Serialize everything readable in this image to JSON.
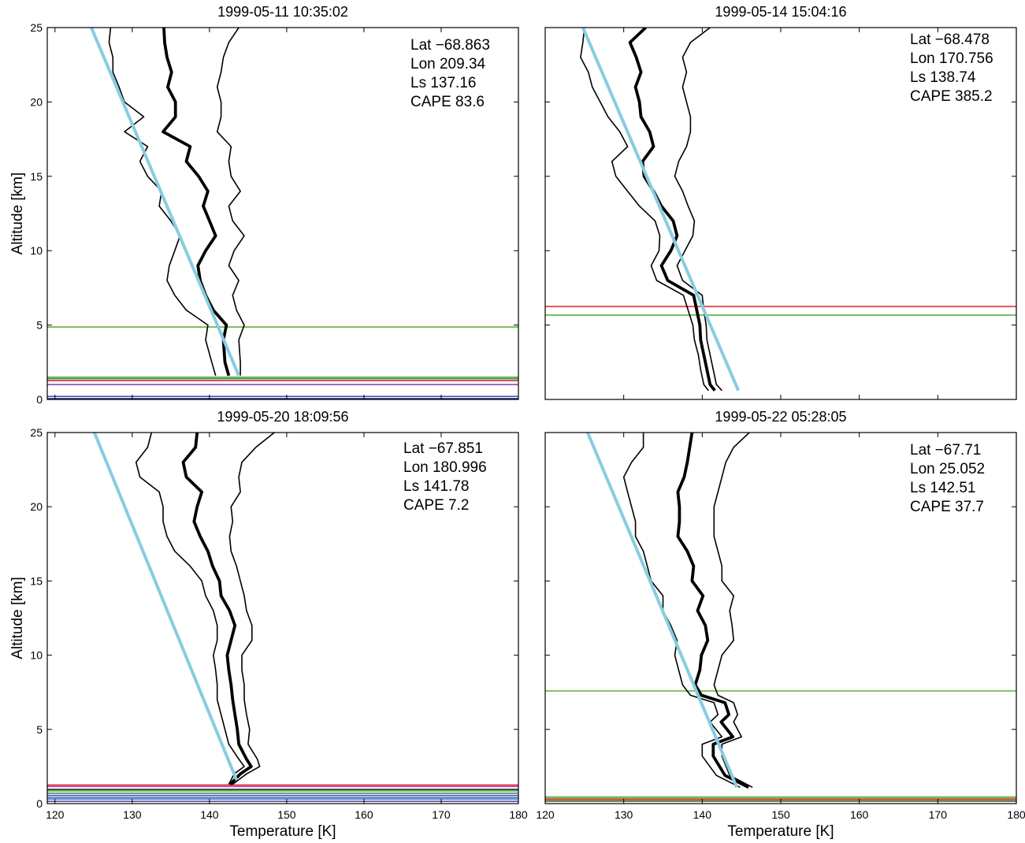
{
  "chart_data": [
    {
      "type": "line",
      "title": "1999-05-11 10:35:02",
      "ylabel": "Altitude [km]",
      "xlim": [
        119,
        180
      ],
      "ylim": [
        0,
        25
      ],
      "xticks": [
        120,
        130,
        140,
        150,
        160,
        170,
        180
      ],
      "xtick_labels": false,
      "yticks": [
        0,
        5,
        10,
        15,
        20,
        25
      ],
      "ytick_labels": true,
      "annotations": [
        "Lat −68.863",
        "Lon 209.34",
        "Ls 137.16",
        "CAPE 83.6"
      ],
      "y": [
        1.6,
        2.5,
        4,
        5,
        6,
        7,
        8,
        9,
        10,
        11,
        12,
        13,
        14,
        15,
        16,
        17,
        18,
        19,
        20,
        21,
        22,
        23,
        24,
        25
      ],
      "series": [
        {
          "color": "#000000",
          "values": [
            140.8,
            140.3,
            139.5,
            139.8,
            137.0,
            135.5,
            134.5,
            134.8,
            135.5,
            136.2,
            135.0,
            133.5,
            133.8,
            132.0,
            131.0,
            132.0,
            129.0,
            131.5,
            129.0,
            128.3,
            127.5,
            127.5,
            127.0,
            127.2
          ]
        },
        {
          "color": "#000000",
          "values": [
            142.5,
            142.0,
            141.8,
            142.2,
            140.5,
            139.5,
            138.8,
            138.5,
            139.5,
            140.8,
            140.0,
            139.2,
            139.8,
            138.6,
            137.0,
            137.5,
            134.0,
            135.6,
            135.6,
            134.6,
            135.1,
            134.5,
            134.2,
            134.1
          ]
        },
        {
          "color": "#000000",
          "values": [
            144.0,
            144.0,
            143.8,
            144.5,
            143.5,
            143.0,
            143.8,
            142.5,
            143.2,
            144.5,
            143.0,
            142.5,
            144.0,
            142.8,
            142.5,
            142.8,
            141.0,
            141.5,
            141.5,
            141.0,
            141.5,
            141.8,
            142.5,
            143.8
          ]
        }
      ],
      "fit": {
        "color": "#87cde0",
        "x": [
          143.8,
          124.7
        ],
        "y": [
          1.6,
          25
        ]
      },
      "hlines": [
        {
          "value": 4.87,
          "color": "#5ab43c"
        },
        {
          "value": 1.5,
          "color": "#5ab43c"
        },
        {
          "value": 1.4,
          "color": "#2e8b57"
        },
        {
          "value": 1.27,
          "color": "#e0202a"
        },
        {
          "value": 1.0,
          "color": "#7b3fa0"
        },
        {
          "value": 0.2,
          "color": "#3b5bbf"
        },
        {
          "value": 0.05,
          "color": "#1b1f6b"
        }
      ]
    },
    {
      "type": "line",
      "title": "1999-05-14 15:04:16",
      "xlim": [
        120,
        180
      ],
      "ylim": [
        0,
        25
      ],
      "xticks": [
        130,
        140,
        150,
        160,
        170,
        180
      ],
      "xtick_labels": false,
      "yticks": [
        0,
        5,
        10,
        15,
        20,
        25
      ],
      "ytick_labels": false,
      "annotations": [
        "Lat −68.478",
        "Lon 170.756",
        "Ls 138.74",
        "CAPE 385.2"
      ],
      "y": [
        0.6,
        1,
        2,
        3,
        4,
        5,
        6,
        7,
        8,
        9,
        10,
        11,
        12,
        13,
        14,
        15,
        16,
        17,
        18,
        19,
        20,
        21,
        22,
        23,
        24,
        25
      ],
      "series": [
        {
          "color": "#000000",
          "values": [
            140.8,
            140.2,
            139.8,
            139.5,
            139.0,
            138.8,
            138.2,
            137.6,
            134.2,
            133.5,
            134.5,
            134.6,
            134.0,
            132.0,
            130.5,
            129.0,
            128.5,
            130.5,
            129.5,
            128.0,
            127.0,
            126.0,
            125.5,
            124.5,
            124.8,
            125.0
          ]
        },
        {
          "color": "#000000",
          "values": [
            141.6,
            141.0,
            140.6,
            140.2,
            139.8,
            139.7,
            139.3,
            138.9,
            135.6,
            134.8,
            136.0,
            136.8,
            136.3,
            134.8,
            133.8,
            132.6,
            132.4,
            133.8,
            133.3,
            132.2,
            132.0,
            131.5,
            132.2,
            131.6,
            130.8,
            132.8
          ]
        },
        {
          "color": "#000000",
          "values": [
            142.5,
            141.8,
            141.4,
            141.0,
            140.6,
            140.5,
            140.2,
            140.0,
            137.5,
            136.8,
            137.8,
            138.8,
            139.0,
            138.2,
            137.5,
            136.5,
            137.0,
            138.0,
            138.5,
            138.5,
            138.0,
            137.5,
            138.0,
            137.5,
            138.5,
            141.0
          ]
        }
      ],
      "fit": {
        "color": "#87cde0",
        "x": [
          144.6,
          124.8
        ],
        "y": [
          0.6,
          25
        ]
      },
      "hlines": [
        {
          "value": 6.25,
          "color": "#e0202a"
        },
        {
          "value": 5.67,
          "color": "#5ab43c"
        }
      ]
    },
    {
      "type": "line",
      "title": "1999-05-20 18:09:56",
      "ylabel": "Altitude [km]",
      "xlabel": "Temperature [K]",
      "xlim": [
        119,
        180
      ],
      "ylim": [
        0,
        25
      ],
      "xticks": [
        120,
        130,
        140,
        150,
        160,
        170,
        180
      ],
      "xtick_labels": true,
      "yticks": [
        0,
        5,
        10,
        15,
        20,
        25
      ],
      "ytick_labels": true,
      "annotations": [
        "Lat −67.851",
        "Lon 180.996",
        "Ls 141.78",
        "CAPE 7.2"
      ],
      "y": [
        1.3,
        2,
        2.5,
        3,
        4,
        5,
        6,
        7,
        8,
        9,
        10,
        11,
        12,
        13,
        14,
        15,
        16,
        17,
        18,
        19,
        20,
        21,
        22,
        23,
        24,
        25
      ],
      "series": [
        {
          "color": "#000000",
          "values": [
            142.5,
            143.2,
            144.5,
            143.8,
            142.5,
            142.0,
            141.5,
            141.0,
            141.0,
            140.8,
            140.5,
            141.0,
            141.0,
            140.5,
            139.5,
            139.0,
            137.5,
            135.5,
            134.5,
            134.0,
            134.0,
            133.5,
            131.0,
            130.5,
            132.0,
            132.5
          ]
        },
        {
          "color": "#000000",
          "values": [
            142.7,
            144.0,
            145.4,
            144.8,
            143.8,
            143.6,
            143.3,
            143.0,
            142.8,
            142.5,
            142.3,
            142.8,
            143.3,
            142.6,
            141.5,
            141.3,
            140.4,
            139.8,
            138.8,
            138.0,
            138.4,
            139.0,
            137.0,
            136.6,
            138.2,
            138.4
          ]
        },
        {
          "color": "#000000",
          "values": [
            143.0,
            144.8,
            146.5,
            146.2,
            145.0,
            145.2,
            144.8,
            144.5,
            144.5,
            144.2,
            144.2,
            145.5,
            145.5,
            144.8,
            144.5,
            144.0,
            143.5,
            142.8,
            142.6,
            143.0,
            142.8,
            144.0,
            143.8,
            144.2,
            146.0,
            148.4
          ]
        }
      ],
      "fit": {
        "color": "#87cde0",
        "x": [
          143.5,
          125.1
        ],
        "y": [
          1.6,
          25
        ]
      },
      "hlines": [
        {
          "value": 1.25,
          "color": "#e0202a"
        },
        {
          "value": 1.15,
          "color": "#c040c0"
        },
        {
          "value": 0.95,
          "color": "#222222"
        },
        {
          "value": 0.85,
          "color": "#5ab43c"
        },
        {
          "value": 0.7,
          "color": "#3a8f5a"
        },
        {
          "value": 0.55,
          "color": "#3b5bbf"
        },
        {
          "value": 0.4,
          "color": "#6a5acd"
        },
        {
          "value": 0.3,
          "color": "#4a8fbf"
        },
        {
          "value": 0.15,
          "color": "#5a4fa0"
        }
      ]
    },
    {
      "type": "line",
      "title": "1999-05-22 05:28:05",
      "xlabel": "Temperature [K]",
      "xlim": [
        120,
        180
      ],
      "ylim": [
        0,
        25
      ],
      "xticks": [
        120,
        130,
        140,
        150,
        160,
        170,
        180
      ],
      "xtick_labels": true,
      "yticks": [
        0,
        5,
        10,
        15,
        20,
        25
      ],
      "ytick_labels": false,
      "annotations": [
        "Lat −67.71",
        "Lon 25.052",
        "Ls 142.51",
        "CAPE 37.7"
      ],
      "y": [
        1.1,
        1.9,
        3.2,
        4,
        4.5,
        5.5,
        6,
        6.8,
        7.3,
        8,
        9,
        10,
        11,
        12,
        13,
        14,
        15,
        16,
        17,
        18,
        19,
        20,
        21,
        22,
        23,
        24,
        25
      ],
      "series": [
        {
          "color": "#000000",
          "values": [
            144.8,
            141.8,
            140.0,
            140.0,
            142.5,
            141.0,
            142.0,
            141.5,
            138.5,
            137.5,
            137.0,
            136.5,
            136.8,
            136.0,
            135.0,
            135.0,
            133.5,
            133.0,
            132.5,
            131.5,
            131.5,
            131.0,
            130.5,
            130.0,
            131.0,
            132.5,
            132.5
          ]
        },
        {
          "color": "#000000",
          "values": [
            145.9,
            142.9,
            141.4,
            141.4,
            143.9,
            142.4,
            143.4,
            142.9,
            139.9,
            139.1,
            139.7,
            139.9,
            140.7,
            140.4,
            139.4,
            140.1,
            138.7,
            138.9,
            138.1,
            136.9,
            137.1,
            137.1,
            136.9,
            137.7,
            138.1,
            138.4,
            138.7
          ]
        },
        {
          "color": "#000000",
          "values": [
            146.4,
            143.5,
            142.5,
            142.5,
            145.0,
            144.0,
            144.5,
            144.0,
            142.0,
            141.5,
            142.0,
            142.5,
            144.0,
            143.8,
            143.5,
            144.0,
            142.5,
            142.5,
            142.0,
            141.5,
            141.5,
            141.5,
            142.0,
            142.5,
            143.0,
            144.0,
            146.0
          ]
        }
      ],
      "fit": {
        "color": "#87cde0",
        "x": [
          144.4,
          125.4
        ],
        "y": [
          1.1,
          25
        ]
      },
      "hlines": [
        {
          "value": 7.59,
          "color": "#5ab43c"
        },
        {
          "value": 0.45,
          "color": "#5ab43c"
        },
        {
          "value": 0.35,
          "color": "#8a8a3a"
        },
        {
          "value": 0.25,
          "color": "#e0202a"
        },
        {
          "value": 0.15,
          "color": "#3a8f5a"
        }
      ]
    }
  ]
}
